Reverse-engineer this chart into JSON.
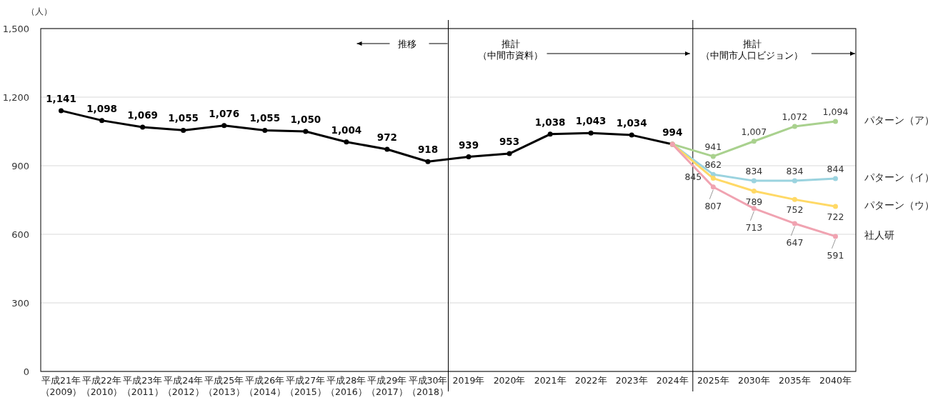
{
  "chart_data": {
    "type": "line",
    "ylabel": "（人）",
    "categories": [
      "平成21年（2009）",
      "平成22年（2010）",
      "平成23年（2011）",
      "平成24年（2012）",
      "平成25年（2013）",
      "平成26年（2014）",
      "平成27年（2015）",
      "平成28年（2016）",
      "平成29年（2017）",
      "平成30年（2018）",
      "2019年",
      "2020年",
      "2021年",
      "2022年",
      "2023年",
      "2024年",
      "2025年",
      "2030年",
      "2035年",
      "2040年"
    ],
    "ylim": [
      0,
      1500
    ],
    "yticks": [
      0,
      {
        "value": 300,
        "label": "300"
      },
      {
        "value": 600,
        "label": "600"
      },
      {
        "value": 900,
        "label": "900"
      },
      {
        "value": 1200,
        "label": "1,200"
      },
      {
        "value": 1500,
        "label": "1,500"
      }
    ],
    "grid": "y",
    "legend": false,
    "marker": "circle",
    "line_style": "solid",
    "series": [
      {
        "color": "#000000",
        "values": [
          1141,
          1098,
          1069,
          1055,
          1076,
          1055,
          1050,
          1004,
          972,
          918,
          939,
          953,
          1038,
          1043,
          1034,
          994,
          null,
          null,
          null,
          null
        ],
        "value_labels": [
          "1,141",
          "1,098",
          "1,069",
          "1,055",
          "1,076",
          "1,055",
          "1,050",
          "1,004",
          "972",
          "918",
          "939",
          "953",
          "1,038",
          "1,043",
          "1,034",
          "994",
          null,
          null,
          null,
          null
        ]
      },
      {
        "name": "パターン（ア）",
        "color": "#a9d18e",
        "values": [
          null,
          null,
          null,
          null,
          null,
          null,
          null,
          null,
          null,
          null,
          null,
          null,
          null,
          null,
          null,
          994,
          941,
          1007,
          1072,
          1094
        ],
        "value_labels": [
          null,
          null,
          null,
          null,
          null,
          null,
          null,
          null,
          null,
          null,
          null,
          null,
          null,
          null,
          null,
          null,
          "941",
          "1,007",
          "1,072",
          "1,094"
        ]
      },
      {
        "name": "パターン（イ）",
        "color": "#9bd3df",
        "values": [
          null,
          null,
          null,
          null,
          null,
          null,
          null,
          null,
          null,
          null,
          null,
          null,
          null,
          null,
          null,
          994,
          862,
          834,
          834,
          844
        ],
        "value_labels": [
          null,
          null,
          null,
          null,
          null,
          null,
          null,
          null,
          null,
          null,
          null,
          null,
          null,
          null,
          null,
          null,
          "862",
          "834",
          "834",
          "844"
        ]
      },
      {
        "name": "パターン（ウ）",
        "color": "#ffd966",
        "values": [
          null,
          null,
          null,
          null,
          null,
          null,
          null,
          null,
          null,
          null,
          null,
          null,
          null,
          null,
          null,
          994,
          845,
          789,
          752,
          722
        ],
        "value_labels": [
          null,
          null,
          null,
          null,
          null,
          null,
          null,
          null,
          null,
          null,
          null,
          null,
          null,
          null,
          null,
          null,
          "845",
          "789",
          "752",
          "722"
        ]
      },
      {
        "name": "社人研",
        "color": "#f0a3b1",
        "values": [
          null,
          null,
          null,
          null,
          null,
          null,
          null,
          null,
          null,
          null,
          null,
          null,
          null,
          null,
          null,
          994,
          807,
          713,
          647,
          591
        ],
        "value_labels": [
          null,
          null,
          null,
          null,
          null,
          null,
          null,
          null,
          null,
          null,
          null,
          null,
          null,
          null,
          null,
          null,
          "807",
          "713",
          "647",
          "591"
        ]
      }
    ],
    "annotations": [
      "推移",
      "推計（中間市資料）",
      "推計（中間市人口ビジョン）"
    ]
  }
}
